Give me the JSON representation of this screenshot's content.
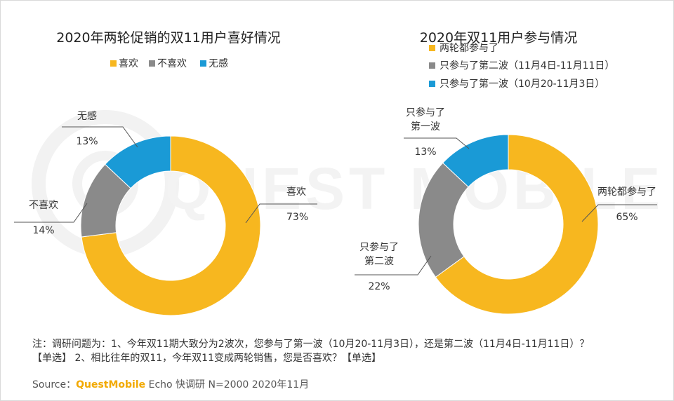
{
  "colors": {
    "yellow": "#f7b71f",
    "gray": "#8a8a8a",
    "blue": "#1a9ad6",
    "line": "#555555",
    "title": "#222222"
  },
  "watermark_text": "QUEST MOBILE",
  "chart_data": [
    {
      "type": "pie",
      "donut": true,
      "title": "2020年两轮促销的双11用户喜好情况",
      "legend_position": "top-center",
      "legend": [
        "喜欢",
        "不喜欢",
        "无感"
      ],
      "slices": [
        {
          "name": "喜欢",
          "value": 73,
          "label": "喜欢",
          "pct": "73%",
          "color": "#f7b71f"
        },
        {
          "name": "不喜欢",
          "value": 14,
          "label": "不喜欢",
          "pct": "14%",
          "color": "#8a8a8a"
        },
        {
          "name": "无感",
          "value": 13,
          "label": "无感",
          "pct": "13%",
          "color": "#1a9ad6"
        }
      ]
    },
    {
      "type": "pie",
      "donut": true,
      "title": "2020年双11用户参与情况",
      "legend_position": "top-left",
      "legend": [
        "两轮都参与了",
        "只参与了第二波（11月4日-11月11日）",
        "只参与了第一波（10月20-11月3日）"
      ],
      "slices": [
        {
          "name": "两轮都参与了",
          "value": 65,
          "label": "两轮都参与了",
          "pct": "65%",
          "color": "#f7b71f"
        },
        {
          "name": "只参与了第二波",
          "value": 22,
          "label": "只参与了\n第二波",
          "pct": "22%",
          "color": "#8a8a8a"
        },
        {
          "name": "只参与了第一波",
          "value": 13,
          "label": "只参与了\n第一波",
          "pct": "13%",
          "color": "#1a9ad6"
        }
      ]
    }
  ],
  "note": {
    "line1": "注：调研问题为：1、今年双11期大致分为2波次，您参与了第一波（10月20-11月3日），还是第二波（11月4日-11月11日）？",
    "line2": "【单选】 2、相比往年的双11，今年双11变成两轮销售，您是否喜欢？【单选】"
  },
  "source": {
    "prefix": "Source：",
    "brand": "QuestMobile",
    "rest": " Echo 快调研 N=2000 2020年11月"
  }
}
